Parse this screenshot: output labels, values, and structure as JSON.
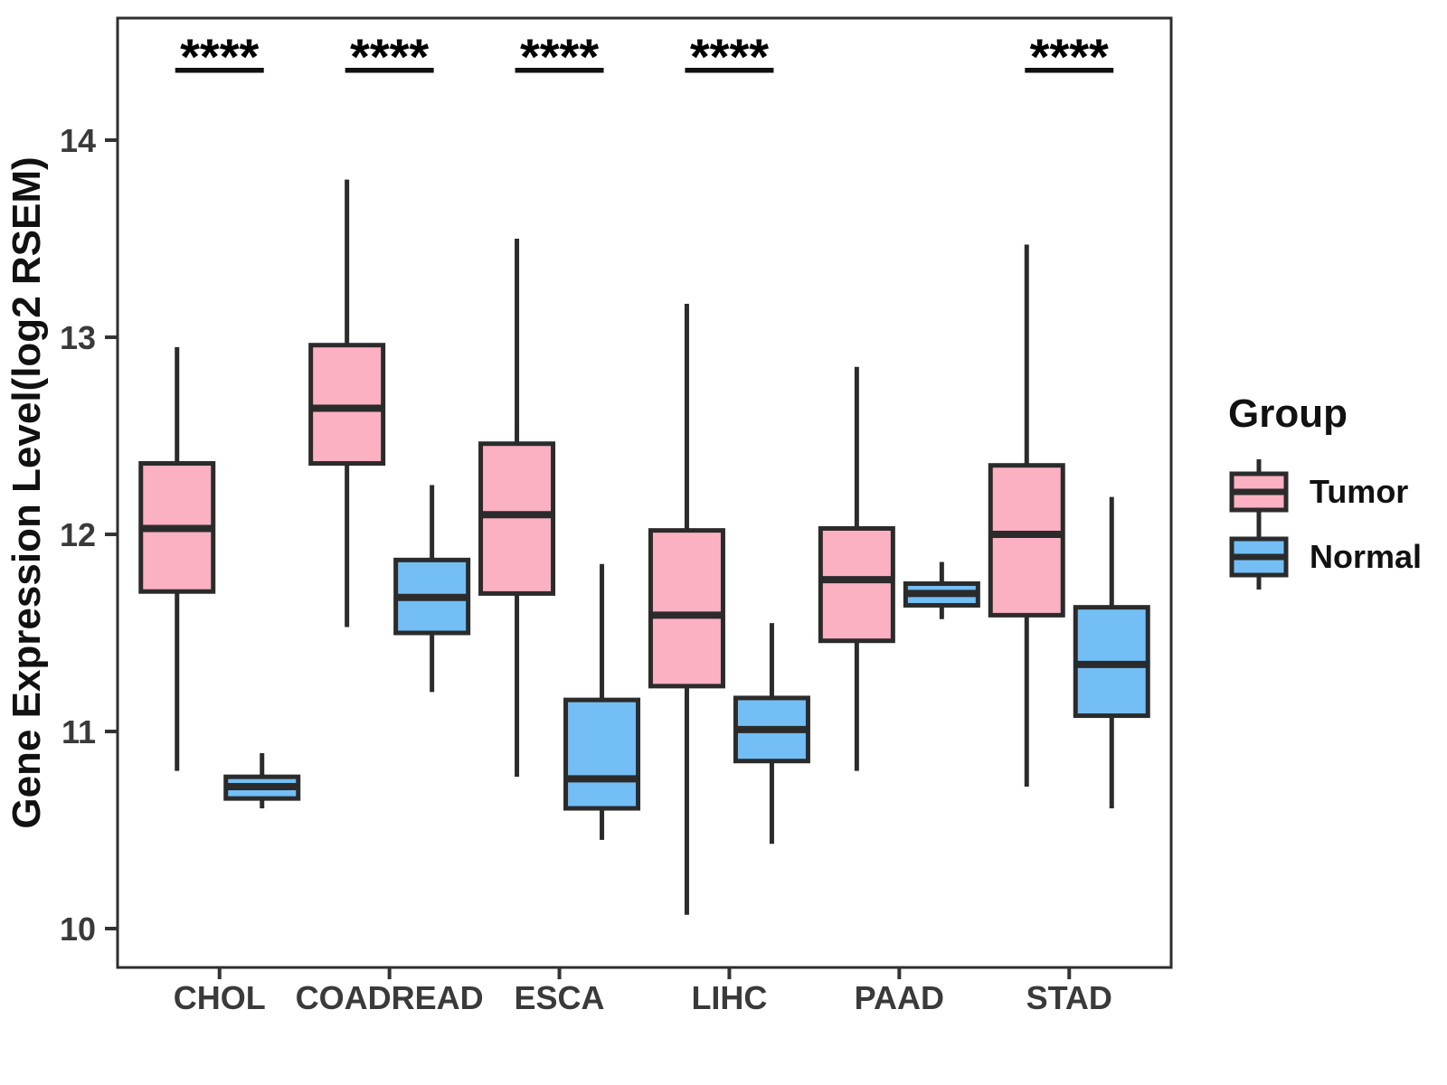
{
  "chart_data": {
    "type": "boxplot",
    "title": "",
    "xlabel": "",
    "ylabel": "Gene Expression Level(log2 RSEM)",
    "ylim": [
      9.8,
      14.6
    ],
    "yticks": [
      10,
      11,
      12,
      13,
      14
    ],
    "categories": [
      "CHOL",
      "COADREAD",
      "ESCA",
      "LIHC",
      "PAAD",
      "STAD"
    ],
    "grid": false,
    "legend": {
      "title": "Group",
      "position": "right",
      "entries": [
        {
          "name": "Tumor",
          "color": "#FBB1C1"
        },
        {
          "name": "Normal",
          "color": "#73BFF5"
        }
      ]
    },
    "series": [
      {
        "name": "Tumor",
        "color": "#FBB1C1",
        "boxes": [
          {
            "category": "CHOL",
            "low": 10.8,
            "q1": 11.71,
            "median": 12.03,
            "q3": 12.36,
            "high": 12.95
          },
          {
            "category": "COADREAD",
            "low": 11.53,
            "q1": 12.36,
            "median": 12.64,
            "q3": 12.96,
            "high": 13.8
          },
          {
            "category": "ESCA",
            "low": 10.77,
            "q1": 11.7,
            "median": 12.1,
            "q3": 12.46,
            "high": 13.5
          },
          {
            "category": "LIHC",
            "low": 10.07,
            "q1": 11.23,
            "median": 11.59,
            "q3": 12.02,
            "high": 13.17
          },
          {
            "category": "PAAD",
            "low": 10.8,
            "q1": 11.46,
            "median": 11.77,
            "q3": 12.03,
            "high": 12.85
          },
          {
            "category": "STAD",
            "low": 10.72,
            "q1": 11.59,
            "median": 12.0,
            "q3": 12.35,
            "high": 13.47
          }
        ]
      },
      {
        "name": "Normal",
        "color": "#73BFF5",
        "boxes": [
          {
            "category": "CHOL",
            "low": 10.61,
            "q1": 10.66,
            "median": 10.72,
            "q3": 10.77,
            "high": 10.89
          },
          {
            "category": "COADREAD",
            "low": 11.2,
            "q1": 11.5,
            "median": 11.68,
            "q3": 11.87,
            "high": 12.25
          },
          {
            "category": "ESCA",
            "low": 10.45,
            "q1": 10.61,
            "median": 10.76,
            "q3": 11.16,
            "high": 11.85
          },
          {
            "category": "LIHC",
            "low": 10.43,
            "q1": 10.85,
            "median": 11.01,
            "q3": 11.17,
            "high": 11.55
          },
          {
            "category": "PAAD",
            "low": 11.57,
            "q1": 11.64,
            "median": 11.7,
            "q3": 11.75,
            "high": 11.86
          },
          {
            "category": "STAD",
            "low": 10.61,
            "q1": 11.08,
            "median": 11.34,
            "q3": 11.63,
            "high": 12.19
          }
        ]
      }
    ],
    "significance": [
      {
        "category": "CHOL",
        "label": "****"
      },
      {
        "category": "COADREAD",
        "label": "****"
      },
      {
        "category": "ESCA",
        "label": "****"
      },
      {
        "category": "LIHC",
        "label": "****"
      },
      {
        "category": "STAD",
        "label": "****"
      }
    ],
    "colors": {
      "box_stroke": "#2B2B2B",
      "axis": "#333333",
      "panel_border": "#2E2E2E",
      "significance_bar": "#111111",
      "background": "#FFFFFF"
    }
  }
}
